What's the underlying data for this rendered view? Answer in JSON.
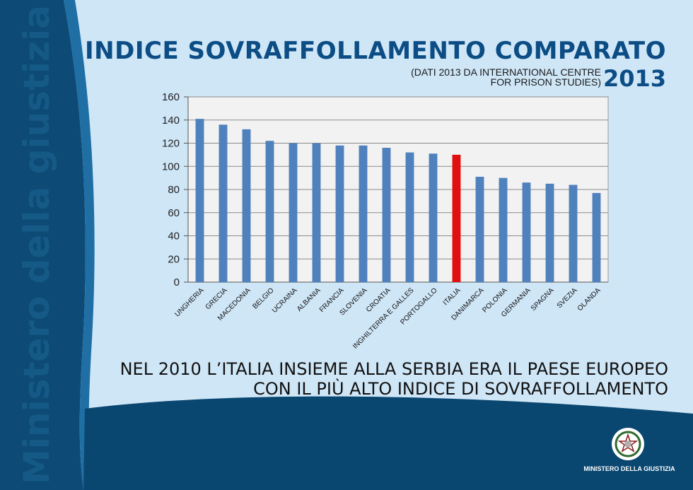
{
  "brand_vertical": "Ministero della giustizia",
  "title": "INDICE SOVRAFFOLLAMENTO COMPARATO",
  "subtitle_line1": "(DATI 2013 DA INTERNATIONAL CENTRE",
  "subtitle_line2": "FOR PRISON STUDIES)",
  "year": "2013",
  "caption_line1": "NEL 2010 L’ITALIA INSIEME ALLA SERBIA ERA IL PAESE EUROPEO",
  "caption_line2": "CON IL PIÙ ALTO INDICE DI SOVRAFFOLLAMENTO",
  "footer_logo_label": "MINISTERO DELLA GIUSTIZIA",
  "colors": {
    "bar": "#4f81bd",
    "highlight_bar": "#e01010",
    "page_light": "#cfe6f7",
    "page_dark": "#0a4770"
  },
  "chart_data": {
    "type": "bar",
    "categories": [
      "UNGHERIA",
      "GRECIA",
      "MACEDONIA",
      "BELGIO",
      "UCRAINA",
      "ALBANIA",
      "FRANCIA",
      "SLOVENIA",
      "CROATIA",
      "INGHILTERRA E GALLES",
      "PORTOGALLO",
      "ITALIA",
      "DANIMARCA",
      "POLONIA",
      "GERMANIA",
      "SPAGNA",
      "SVEZIA",
      "OLANDA"
    ],
    "values": [
      141,
      136,
      132,
      122,
      120,
      120,
      118,
      118,
      116,
      112,
      111,
      110,
      91,
      90,
      86,
      85,
      84,
      77
    ],
    "highlight": "ITALIA",
    "ylim": [
      0,
      160
    ],
    "yticks": [
      0,
      20,
      40,
      60,
      80,
      100,
      120,
      140,
      160
    ],
    "grid": true
  }
}
